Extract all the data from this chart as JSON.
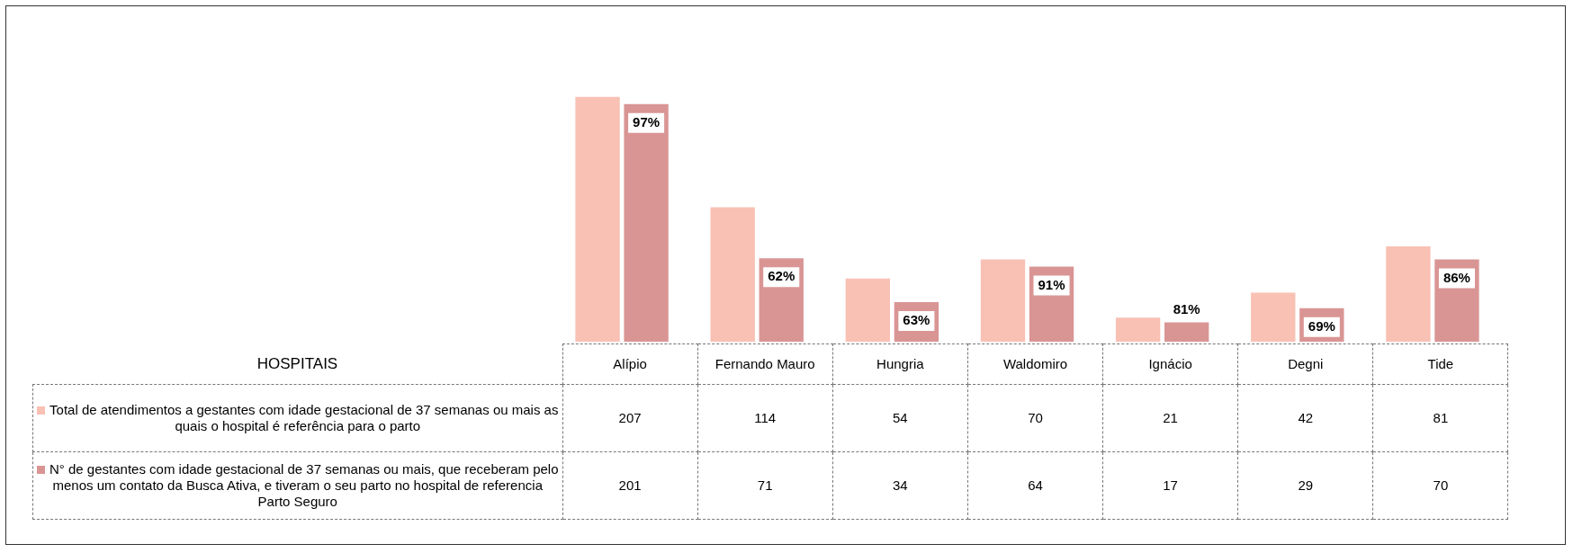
{
  "chart_data": {
    "type": "bar",
    "categories": [
      "Alípio",
      "Fernando Mauro",
      "Hungria",
      "Waldomiro",
      "Ignácio",
      "Degni",
      "Tide"
    ],
    "series": [
      {
        "name": "Total de atendimentos a gestantes com idade gestacional de 37 semanas ou mais as quais o hospital é referência para o parto",
        "color": "#f9c0b4",
        "values": [
          207,
          114,
          54,
          70,
          21,
          42,
          81
        ],
        "value_labels": [
          "207",
          "114",
          "54",
          "70",
          "21",
          "42",
          "81"
        ]
      },
      {
        "name": "N° de gestantes com idade gestacional de 37 semanas ou mais, que receberam pelo menos um contato da Busca Ativa, e tiveram o seu parto no hospital de referencia Parto Seguro",
        "color": "#d99594",
        "values": [
          201,
          71,
          34,
          64,
          17,
          29,
          70
        ],
        "value_labels": [
          "201",
          "71",
          "34",
          "64",
          "17",
          "29",
          "70"
        ]
      }
    ],
    "annotations": [
      "HOSPITAIS",
      {
        "text": "97%",
        "x": "Alípio",
        "y": 201
      },
      {
        "text": "62%",
        "x": "Fernando Mauro",
        "y": 71
      },
      {
        "text": "63%",
        "x": "Hungria",
        "y": 34
      },
      {
        "text": "91%",
        "x": "Waldomiro",
        "y": 64
      },
      {
        "text": "81%",
        "x": "Ignácio",
        "y": 17
      },
      {
        "text": "69%",
        "x": "Degni",
        "y": 29
      },
      {
        "text": "86%",
        "x": "Tide",
        "y": 70
      }
    ],
    "legend": "bottom left",
    "grid": false
  }
}
